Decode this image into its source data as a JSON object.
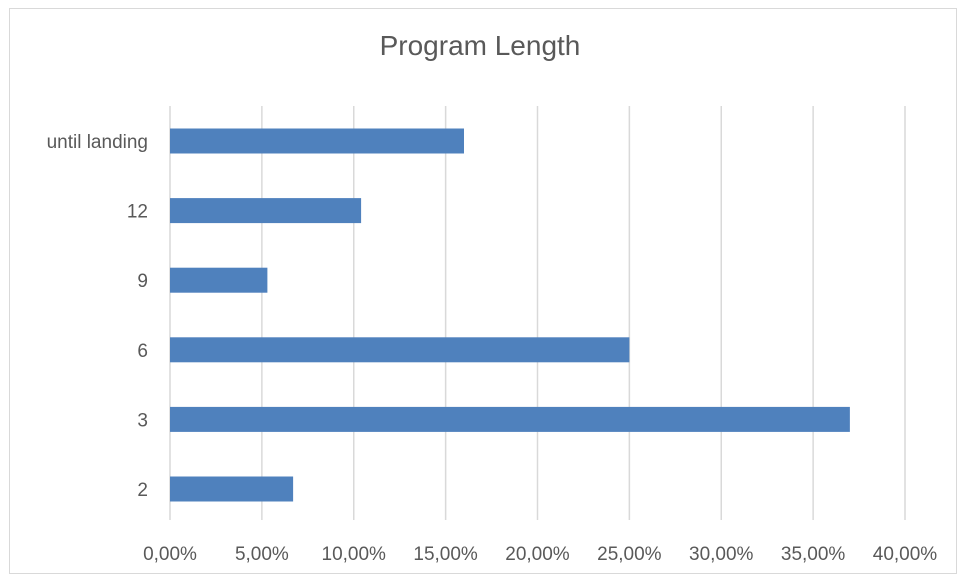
{
  "chart_data": {
    "type": "bar",
    "orientation": "horizontal",
    "title": "Program Length",
    "xlabel": "",
    "ylabel": "",
    "categories": [
      "2",
      "3",
      "6",
      "9",
      "12",
      "until landing"
    ],
    "values": [
      0.067,
      0.37,
      0.25,
      0.053,
      0.104,
      0.16
    ],
    "xlim": [
      0,
      0.4
    ],
    "x_ticks": [
      0,
      0.05,
      0.1,
      0.15,
      0.2,
      0.25,
      0.3,
      0.35,
      0.4
    ],
    "x_tick_labels": [
      "0,00%",
      "5,00%",
      "10,00%",
      "15,00%",
      "20,00%",
      "25,00%",
      "30,00%",
      "35,00%",
      "40,00%"
    ],
    "grid": "vertical",
    "legend": "none",
    "bar_color": "#4f81bd",
    "grid_color": "#d9d9d9"
  }
}
